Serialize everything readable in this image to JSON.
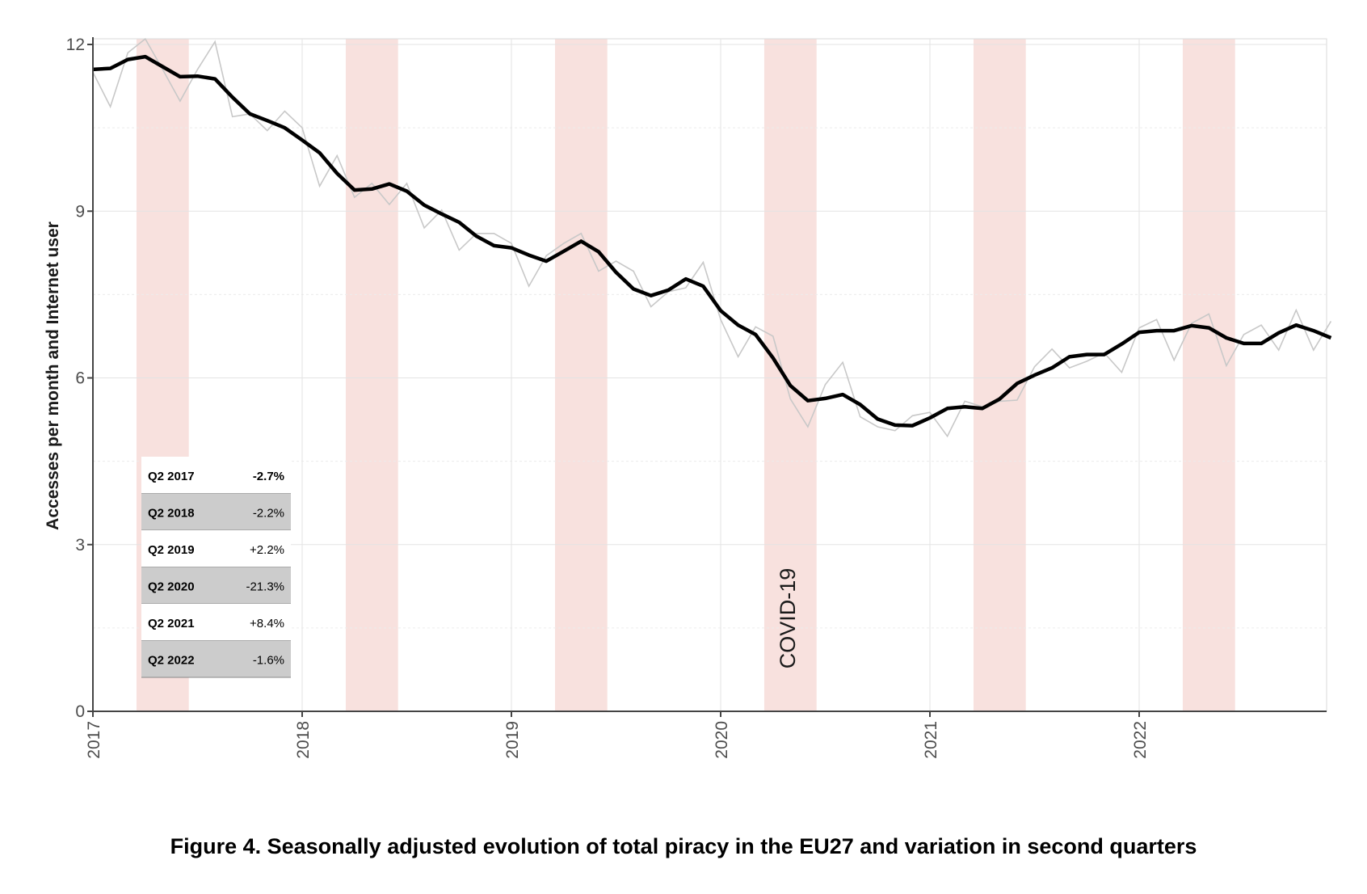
{
  "chart_data": {
    "type": "line",
    "ylabel": "Accesses per month and Internet user",
    "ylim": [
      0,
      12.1
    ],
    "y_ticks": [
      0,
      3,
      6,
      9,
      12
    ],
    "y_tick_labels": [
      "0",
      "3",
      "6",
      "9",
      "12"
    ],
    "xlim": [
      "2017-01",
      "2022-12"
    ],
    "x_ticks": [
      "2017",
      "2018",
      "2019",
      "2020",
      "2021",
      "2022"
    ],
    "x_tick_dates": [
      "2017-01",
      "2018-01",
      "2019-01",
      "2020-01",
      "2021-01",
      "2022-01"
    ],
    "grid": true,
    "x": [
      "2017-01",
      "2017-02",
      "2017-03",
      "2017-04",
      "2017-05",
      "2017-06",
      "2017-07",
      "2017-08",
      "2017-09",
      "2017-10",
      "2017-11",
      "2017-12",
      "2018-01",
      "2018-02",
      "2018-03",
      "2018-04",
      "2018-05",
      "2018-06",
      "2018-07",
      "2018-08",
      "2018-09",
      "2018-10",
      "2018-11",
      "2018-12",
      "2019-01",
      "2019-02",
      "2019-03",
      "2019-04",
      "2019-05",
      "2019-06",
      "2019-07",
      "2019-08",
      "2019-09",
      "2019-10",
      "2019-11",
      "2019-12",
      "2020-01",
      "2020-02",
      "2020-03",
      "2020-04",
      "2020-05",
      "2020-06",
      "2020-07",
      "2020-08",
      "2020-09",
      "2020-10",
      "2020-11",
      "2020-12",
      "2021-01",
      "2021-02",
      "2021-03",
      "2021-04",
      "2021-05",
      "2021-06",
      "2021-07",
      "2021-08",
      "2021-09",
      "2021-10",
      "2021-11",
      "2021-12",
      "2022-01",
      "2022-02",
      "2022-03",
      "2022-04",
      "2022-05",
      "2022-06",
      "2022-07",
      "2022-08",
      "2022-09",
      "2022-10",
      "2022-11",
      "2022-12"
    ],
    "series": [
      {
        "role": "seasonally adjusted",
        "color": "#000000",
        "values": [
          11.55,
          11.57,
          11.73,
          11.78,
          11.6,
          11.42,
          11.43,
          11.38,
          11.05,
          10.75,
          10.63,
          10.5,
          10.28,
          10.05,
          9.68,
          9.38,
          9.4,
          9.49,
          9.36,
          9.11,
          8.95,
          8.8,
          8.55,
          8.38,
          8.34,
          8.21,
          8.1,
          8.28,
          8.46,
          8.27,
          7.9,
          7.6,
          7.48,
          7.58,
          7.78,
          7.65,
          7.21,
          6.95,
          6.78,
          6.36,
          5.86,
          5.59,
          5.63,
          5.7,
          5.52,
          5.26,
          5.15,
          5.14,
          5.28,
          5.45,
          5.48,
          5.45,
          5.62,
          5.9,
          6.05,
          6.18,
          6.38,
          6.42,
          6.42,
          6.61,
          6.82,
          6.85,
          6.85,
          6.94,
          6.9,
          6.72,
          6.62,
          6.62,
          6.81,
          6.95,
          6.85,
          6.72
        ]
      },
      {
        "role": "raw",
        "color": "#c8c8c8",
        "values": [
          11.5,
          10.88,
          11.85,
          12.1,
          11.55,
          10.98,
          11.55,
          12.05,
          10.7,
          10.75,
          10.45,
          10.8,
          10.5,
          9.45,
          10.0,
          9.25,
          9.5,
          9.12,
          9.5,
          8.7,
          9.02,
          8.3,
          8.6,
          8.6,
          8.42,
          7.65,
          8.2,
          8.42,
          8.6,
          7.92,
          8.1,
          7.92,
          7.28,
          7.55,
          7.62,
          8.08,
          7.05,
          6.38,
          6.92,
          6.75,
          5.62,
          5.12,
          5.88,
          6.28,
          5.3,
          5.12,
          5.05,
          5.32,
          5.38,
          4.95,
          5.58,
          5.48,
          5.58,
          5.6,
          6.2,
          6.52,
          6.18,
          6.3,
          6.45,
          6.1,
          6.9,
          7.05,
          6.32,
          6.98,
          7.15,
          6.22,
          6.78,
          6.95,
          6.5,
          7.22,
          6.5,
          7.02
        ]
      }
    ],
    "shaded_periods": [
      {
        "start": "2017-04",
        "end": "2017-06"
      },
      {
        "start": "2018-04",
        "end": "2018-06"
      },
      {
        "start": "2019-04",
        "end": "2019-06"
      },
      {
        "start": "2020-04",
        "end": "2020-06"
      },
      {
        "start": "2021-04",
        "end": "2021-06"
      },
      {
        "start": "2022-04",
        "end": "2022-06"
      }
    ],
    "shade_color": "#f8e1de",
    "annotation": "COVID-19",
    "table": {
      "rows": [
        {
          "label": "Q2 2017",
          "value": "-2.7%"
        },
        {
          "label": "Q2 2018",
          "value": "-2.2%"
        },
        {
          "label": "Q2 2019",
          "value": "+2.2%"
        },
        {
          "label": "Q2 2020",
          "value": "-21.3%"
        },
        {
          "label": "Q2 2021",
          "value": "+8.4%"
        },
        {
          "label": "Q2 2022",
          "value": "-1.6%"
        }
      ],
      "alt_row_color": "#cccccc"
    }
  },
  "caption": "Figure 4. Seasonally adjusted evolution of total piracy in the EU27 and variation in second quarters"
}
